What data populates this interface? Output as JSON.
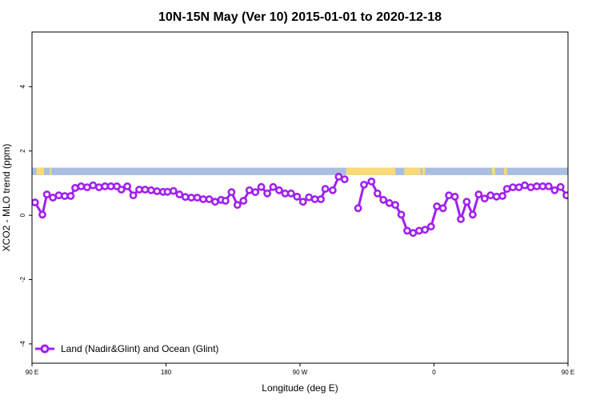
{
  "chart_data": {
    "type": "line",
    "title": "10N-15N May (Ver 10)   2015-01-01 to 2020-12-18",
    "xlabel": "Longitude (deg E)",
    "ylabel": "XCO2 - MLO trend (ppm)",
    "xlim": [
      90,
      450
    ],
    "ylim": [
      -4.6,
      5.7
    ],
    "x_ticks": [
      {
        "value": 90,
        "label": "90 E"
      },
      {
        "value": 180,
        "label": "180"
      },
      {
        "value": 270,
        "label": "90 W"
      },
      {
        "value": 360,
        "label": "0"
      },
      {
        "value": 450,
        "label": "90 E"
      },
      {
        "value": 540,
        "label": "180"
      }
    ],
    "y_ticks": [
      {
        "value": -4,
        "label": "-4"
      },
      {
        "value": -2,
        "label": "-2"
      },
      {
        "value": 0,
        "label": "0"
      },
      {
        "value": 2,
        "label": "2"
      },
      {
        "value": 4,
        "label": "4"
      }
    ],
    "grid": false,
    "legend_position": "bottom-left",
    "land_band": {
      "y_bottom": 1.25,
      "y_top": 1.48,
      "ocean_color": "#a8bfdf",
      "land_color": "#f9d978"
    },
    "series": [
      {
        "name": "Land (Nadir&Glint) and Ocean (Glint)",
        "color": "#a020f0",
        "segments": [
          [
            [
              92,
              0.4
            ],
            [
              97,
              0.02
            ],
            [
              100,
              0.65
            ],
            [
              104,
              0.55
            ],
            [
              108,
              0.62
            ],
            [
              112,
              0.6
            ],
            [
              116,
              0.6
            ],
            [
              119,
              0.85
            ],
            [
              123,
              0.9
            ],
            [
              127,
              0.87
            ],
            [
              131,
              0.93
            ],
            [
              135,
              0.87
            ],
            [
              139,
              0.9
            ],
            [
              143,
              0.9
            ],
            [
              147,
              0.9
            ],
            [
              150,
              0.8
            ],
            [
              154,
              0.9
            ],
            [
              158,
              0.62
            ],
            [
              162,
              0.8
            ],
            [
              166,
              0.8
            ],
            [
              170,
              0.78
            ],
            [
              174,
              0.75
            ],
            [
              178,
              0.73
            ],
            [
              181,
              0.73
            ],
            [
              185,
              0.76
            ],
            [
              189,
              0.65
            ],
            [
              193,
              0.57
            ],
            [
              197,
              0.55
            ],
            [
              201,
              0.55
            ],
            [
              205,
              0.5
            ],
            [
              209,
              0.5
            ],
            [
              213,
              0.42
            ],
            [
              217,
              0.48
            ],
            [
              220,
              0.45
            ],
            [
              224,
              0.72
            ],
            [
              228,
              0.32
            ],
            [
              232,
              0.45
            ],
            [
              236,
              0.78
            ],
            [
              240,
              0.72
            ],
            [
              244,
              0.88
            ],
            [
              248,
              0.68
            ],
            [
              252,
              0.88
            ],
            [
              256,
              0.78
            ],
            [
              260,
              0.68
            ],
            [
              264,
              0.68
            ],
            [
              268,
              0.58
            ],
            [
              272,
              0.42
            ],
            [
              276,
              0.56
            ],
            [
              280,
              0.5
            ],
            [
              284,
              0.5
            ],
            [
              287,
              0.82
            ],
            [
              292,
              0.78
            ],
            [
              296,
              1.2
            ],
            [
              300,
              1.12
            ]
          ],
          [
            [
              309,
              0.22
            ],
            [
              313,
              0.95
            ],
            [
              318,
              1.05
            ],
            [
              322,
              0.68
            ],
            [
              326,
              0.48
            ],
            [
              330,
              0.38
            ],
            [
              334,
              0.32
            ],
            [
              338,
              0.02
            ],
            [
              342,
              -0.48
            ],
            [
              346,
              -0.55
            ],
            [
              350,
              -0.48
            ],
            [
              354,
              -0.45
            ],
            [
              358,
              -0.35
            ],
            [
              362,
              0.28
            ],
            [
              366,
              0.22
            ],
            [
              370,
              0.62
            ],
            [
              374,
              0.58
            ],
            [
              378,
              -0.12
            ],
            [
              382,
              0.42
            ],
            [
              386,
              0.02
            ],
            [
              390,
              0.65
            ],
            [
              394,
              0.52
            ],
            [
              398,
              0.62
            ],
            [
              402,
              0.58
            ],
            [
              406,
              0.6
            ],
            [
              409,
              0.82
            ],
            [
              413,
              0.87
            ],
            [
              417,
              0.87
            ],
            [
              421,
              0.93
            ],
            [
              425,
              0.87
            ],
            [
              429,
              0.9
            ],
            [
              433,
              0.9
            ],
            [
              437,
              0.9
            ],
            [
              441,
              0.78
            ],
            [
              445,
              0.88
            ],
            [
              449,
              0.62
            ]
          ]
        ]
      }
    ]
  }
}
